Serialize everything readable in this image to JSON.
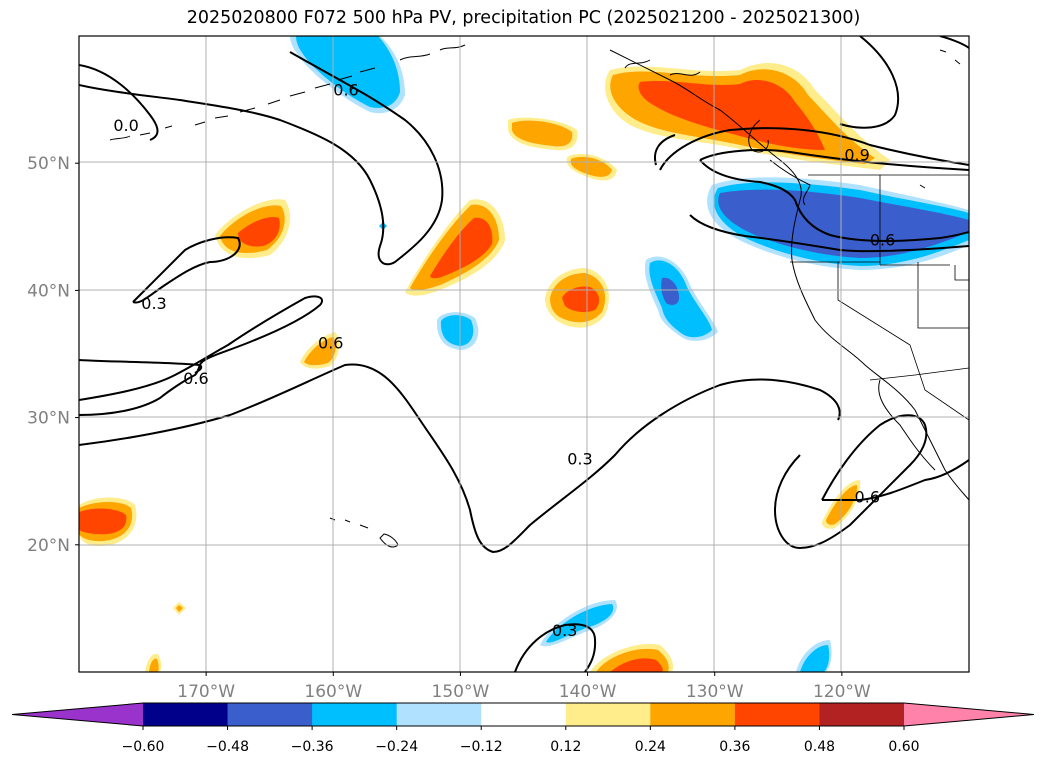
{
  "title": "2025020800 F072 500 hPa PV, precipitation PC (2025021200 - 2025021300)",
  "longitude_ticks": [
    {
      "label": "170°W",
      "lon": -170
    },
    {
      "label": "160°W",
      "lon": -160
    },
    {
      "label": "150°W",
      "lon": -150
    },
    {
      "label": "140°W",
      "lon": -140
    },
    {
      "label": "130°W",
      "lon": -130
    },
    {
      "label": "120°W",
      "lon": -120
    }
  ],
  "latitude_ticks": [
    {
      "label": "50°N",
      "lat": 50
    },
    {
      "label": "40°N",
      "lat": 40
    },
    {
      "label": "30°N",
      "lat": 30
    },
    {
      "label": "20°N",
      "lat": 20
    }
  ],
  "contour_labels": [
    {
      "text": "0.9",
      "lon": -118.8,
      "lat": 50.7
    },
    {
      "text": "0.6",
      "lon": -159.0,
      "lat": 55.8
    },
    {
      "text": "0.6",
      "lon": -116.8,
      "lat": 44.0
    },
    {
      "text": "0.6",
      "lon": -160.2,
      "lat": 35.9
    },
    {
      "text": "0.6",
      "lon": -170.8,
      "lat": 33.1
    },
    {
      "text": "0.6",
      "lon": -118.0,
      "lat": 23.8
    },
    {
      "text": "0.3",
      "lon": -174.1,
      "lat": 39.0
    },
    {
      "text": "0.3",
      "lon": -140.6,
      "lat": 26.8
    },
    {
      "text": "0.3",
      "lon": -141.8,
      "lat": 13.3
    },
    {
      "text": "0.0",
      "lon": -176.3,
      "lat": 53.0
    }
  ],
  "colorbar": {
    "ticks": [
      "−0.60",
      "−0.48",
      "−0.36",
      "−0.24",
      "−0.12",
      "0.12",
      "0.24",
      "0.36",
      "0.48",
      "0.60"
    ],
    "colors": [
      "#9933cc",
      "#00008b",
      "#3a5fcd",
      "#00bfff",
      "#b0e2ff",
      "#ffffff",
      "#ffec8b",
      "#ffa500",
      "#ff4500",
      "#b22222",
      "#ff82ab"
    ]
  }
}
